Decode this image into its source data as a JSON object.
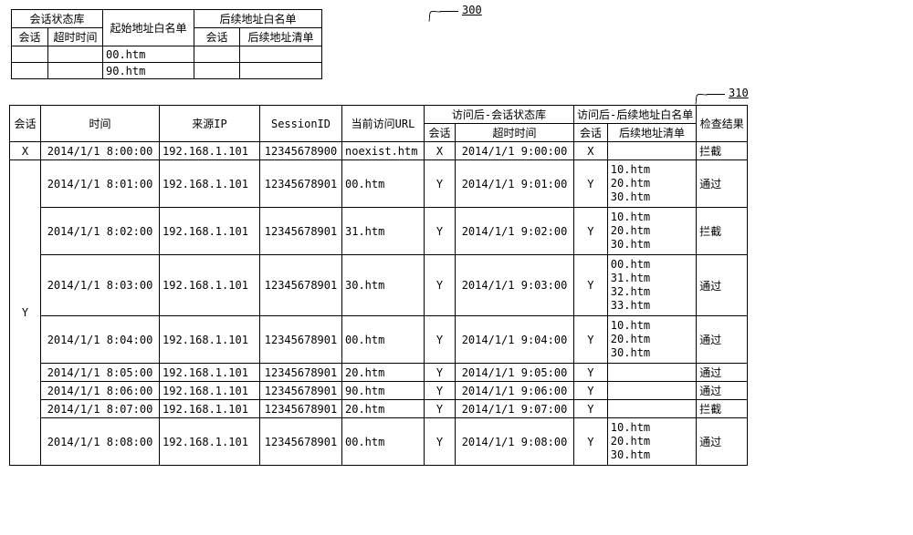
{
  "ref300": "300",
  "ref310": "310",
  "t1": {
    "h_state_lib": "会话状态库",
    "h_session": "会话",
    "h_timeout": "超时时间",
    "h_init_whitelist": "起始地址白名单",
    "h_next_whitelist": "后续地址白名单",
    "h_next_session": "会话",
    "h_next_list": "后续地址清单",
    "rows": [
      {
        "c1": "",
        "c2": "",
        "c3": "00.htm",
        "c4": "",
        "c5": ""
      },
      {
        "c1": "",
        "c2": "",
        "c3": "90.htm",
        "c4": "",
        "c5": ""
      }
    ]
  },
  "t2": {
    "h_session": "会话",
    "h_time": "时间",
    "h_src_ip": "来源IP",
    "h_sessionid": "SessionID",
    "h_cur_url": "当前访问URL",
    "h_post_state": "访问后-会话状态库",
    "h_sess2": "会话",
    "h_timeout2": "超时时间",
    "h_post_wl": "访问后-后续地址白名单",
    "h_sess3": "会话",
    "h_list3": "后续地址清单",
    "h_result": "检查结果",
    "x_label": "X",
    "y_label": "Y",
    "rowX": {
      "time": "2014/1/1 8:00:00",
      "ip": "192.168.1.101",
      "sid": "12345678900",
      "url": "noexist.htm",
      "s2": "X",
      "to": "2014/1/1 9:00:00",
      "s3": "X",
      "list": "",
      "res": "拦截"
    },
    "rowsY": [
      {
        "time": "2014/1/1 8:01:00",
        "ip": "192.168.1.101",
        "sid": "12345678901",
        "url": "00.htm",
        "s2": "Y",
        "to": "2014/1/1 9:01:00",
        "s3": "Y",
        "list": "10.htm\n20.htm\n30.htm",
        "res": "通过"
      },
      {
        "time": "2014/1/1 8:02:00",
        "ip": "192.168.1.101",
        "sid": "12345678901",
        "url": "31.htm",
        "s2": "Y",
        "to": "2014/1/1 9:02:00",
        "s3": "Y",
        "list": "10.htm\n20.htm\n30.htm",
        "res": "拦截"
      },
      {
        "time": "2014/1/1 8:03:00",
        "ip": "192.168.1.101",
        "sid": "12345678901",
        "url": "30.htm",
        "s2": "Y",
        "to": "2014/1/1 9:03:00",
        "s3": "Y",
        "list": "00.htm\n31.htm\n32.htm\n33.htm",
        "res": "通过"
      },
      {
        "time": "2014/1/1 8:04:00",
        "ip": "192.168.1.101",
        "sid": "12345678901",
        "url": "00.htm",
        "s2": "Y",
        "to": "2014/1/1 9:04:00",
        "s3": "Y",
        "list": "10.htm\n20.htm\n30.htm",
        "res": "通过"
      },
      {
        "time": "2014/1/1 8:05:00",
        "ip": "192.168.1.101",
        "sid": "12345678901",
        "url": "20.htm",
        "s2": "Y",
        "to": "2014/1/1 9:05:00",
        "s3": "Y",
        "list": "",
        "res": "通过"
      },
      {
        "time": "2014/1/1 8:06:00",
        "ip": "192.168.1.101",
        "sid": "12345678901",
        "url": "90.htm",
        "s2": "Y",
        "to": "2014/1/1 9:06:00",
        "s3": "Y",
        "list": "",
        "res": "通过"
      },
      {
        "time": "2014/1/1 8:07:00",
        "ip": "192.168.1.101",
        "sid": "12345678901",
        "url": "20.htm",
        "s2": "Y",
        "to": "2014/1/1 9:07:00",
        "s3": "Y",
        "list": "",
        "res": "拦截"
      },
      {
        "time": "2014/1/1 8:08:00",
        "ip": "192.168.1.101",
        "sid": "12345678901",
        "url": "00.htm",
        "s2": "Y",
        "to": "2014/1/1 9:08:00",
        "s3": "Y",
        "list": "10.htm\n20.htm\n30.htm",
        "res": "通过"
      }
    ]
  }
}
